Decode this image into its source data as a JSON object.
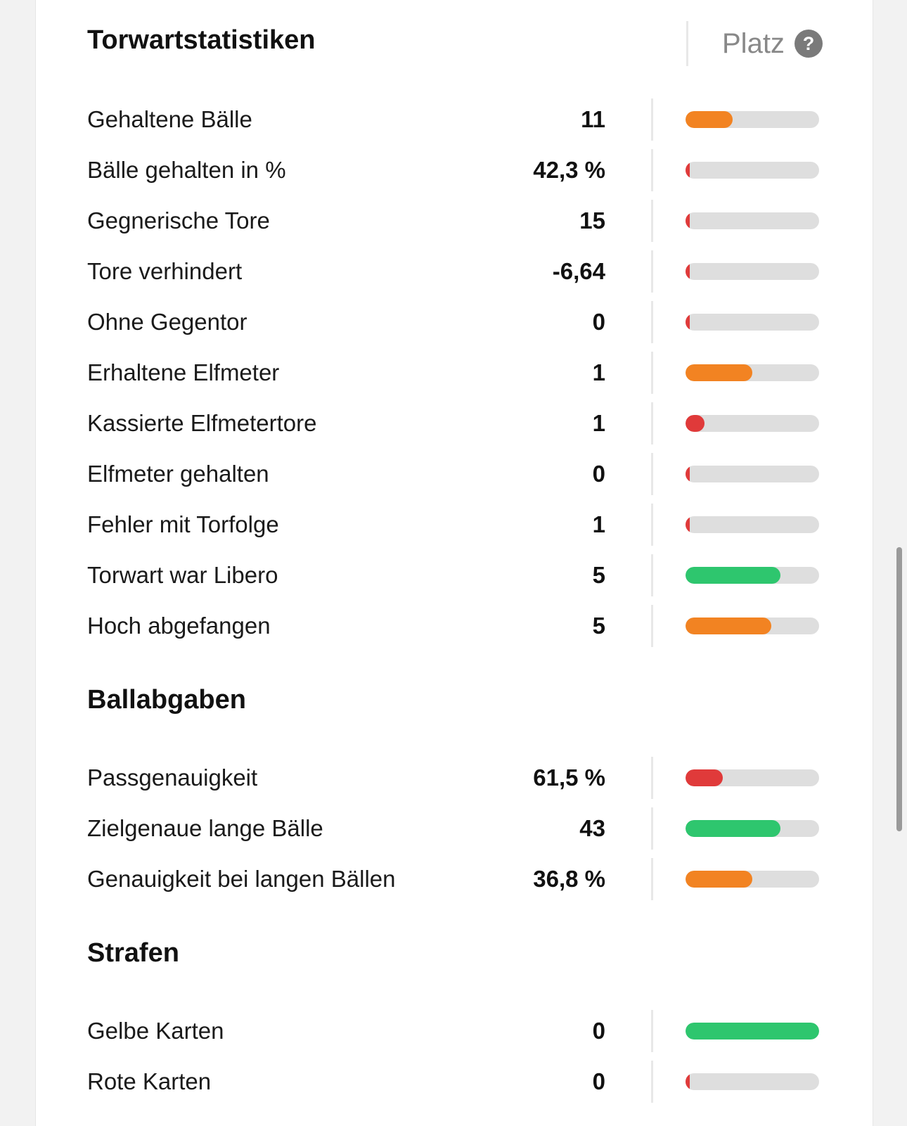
{
  "colors": {
    "red": "#e03a3a",
    "orange": "#f28322",
    "green": "#2ec66e",
    "track": "#dedede"
  },
  "header": {
    "rank_title": "Platz",
    "help_icon": "question-circle-icon",
    "help_glyph": "?"
  },
  "sections": [
    {
      "title": "Torwartstatistiken",
      "rows": [
        {
          "label": "Gehaltene Bälle",
          "value": "11",
          "rank": 0.35,
          "color": "orange"
        },
        {
          "label": "Bälle gehalten in %",
          "value": "42,3 %",
          "rank": 0.03,
          "color": "red"
        },
        {
          "label": "Gegnerische Tore",
          "value": "15",
          "rank": 0.03,
          "color": "red"
        },
        {
          "label": "Tore verhindert",
          "value": "-6,64",
          "rank": 0.03,
          "color": "red"
        },
        {
          "label": "Ohne Gegentor",
          "value": "0",
          "rank": 0.03,
          "color": "red"
        },
        {
          "label": "Erhaltene Elfmeter",
          "value": "1",
          "rank": 0.5,
          "color": "orange"
        },
        {
          "label": "Kassierte Elfmetertore",
          "value": "1",
          "rank": 0.14,
          "color": "red"
        },
        {
          "label": "Elfmeter gehalten",
          "value": "0",
          "rank": 0.03,
          "color": "red"
        },
        {
          "label": "Fehler mit Torfolge",
          "value": "1",
          "rank": 0.03,
          "color": "red"
        },
        {
          "label": "Torwart war Libero",
          "value": "5",
          "rank": 0.71,
          "color": "green"
        },
        {
          "label": "Hoch abgefangen",
          "value": "5",
          "rank": 0.64,
          "color": "orange"
        }
      ]
    },
    {
      "title": "Ballabgaben",
      "rows": [
        {
          "label": "Passgenauigkeit",
          "value": "61,5 %",
          "rank": 0.28,
          "color": "red"
        },
        {
          "label": "Zielgenaue lange Bälle",
          "value": "43",
          "rank": 0.71,
          "color": "green"
        },
        {
          "label": "Genauigkeit bei langen Bällen",
          "value": "36,8 %",
          "rank": 0.5,
          "color": "orange"
        }
      ]
    },
    {
      "title": "Strafen",
      "rows": [
        {
          "label": "Gelbe Karten",
          "value": "0",
          "rank": 1.0,
          "color": "green"
        },
        {
          "label": "Rote Karten",
          "value": "0",
          "rank": 0.03,
          "color": "red"
        }
      ]
    }
  ]
}
